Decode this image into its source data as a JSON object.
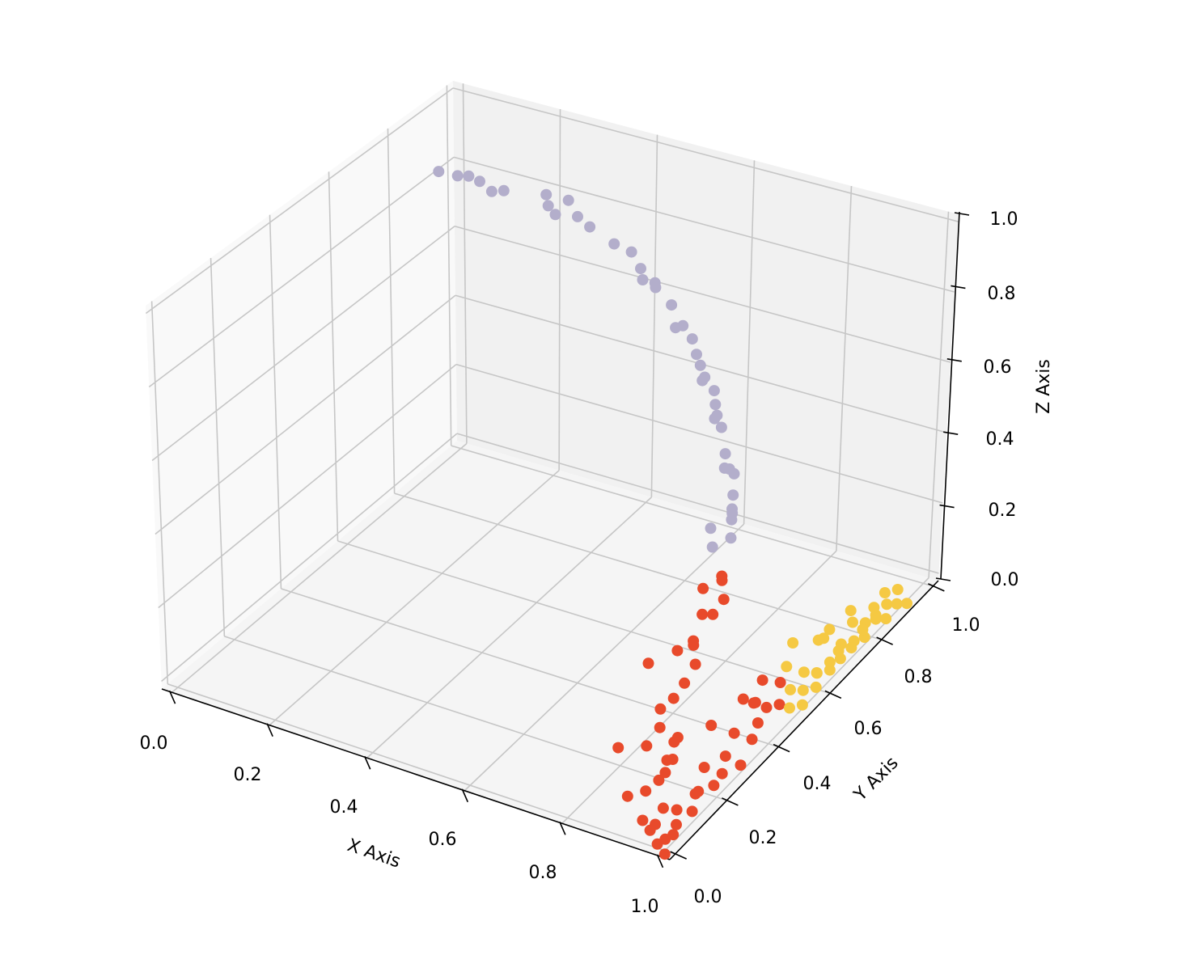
{
  "chart_data": {
    "type": "scatter3d",
    "title": "",
    "xlabel": "X Axis",
    "ylabel": "Y Axis",
    "zlabel": "Z Axis",
    "xlim": [
      0,
      1
    ],
    "ylim": [
      0,
      1
    ],
    "zlim": [
      0,
      1
    ],
    "grid": true,
    "legend": "none",
    "ticks": {
      "x": [
        "0.0",
        "0.2",
        "0.4",
        "0.6",
        "0.8",
        "1.0"
      ],
      "y": [
        "0.0",
        "0.2",
        "0.4",
        "0.6",
        "0.8",
        "1.0"
      ],
      "z": [
        "0.0",
        "0.2",
        "0.4",
        "0.6",
        "0.8",
        "1.0"
      ]
    },
    "series": [
      {
        "color": "#b3aecb",
        "points": [
          [
            0.0,
            0.95,
            0.78
          ],
          [
            0.05,
            0.93,
            0.8
          ],
          [
            0.06,
            0.95,
            0.79
          ],
          [
            0.1,
            0.92,
            0.81
          ],
          [
            0.13,
            0.91,
            0.8
          ],
          [
            0.16,
            0.9,
            0.82
          ],
          [
            0.25,
            0.89,
            0.85
          ],
          [
            0.26,
            0.88,
            0.83
          ],
          [
            0.3,
            0.88,
            0.86
          ],
          [
            0.28,
            0.87,
            0.82
          ],
          [
            0.33,
            0.86,
            0.84
          ],
          [
            0.36,
            0.85,
            0.83
          ],
          [
            0.42,
            0.83,
            0.82
          ],
          [
            0.46,
            0.82,
            0.82
          ],
          [
            0.49,
            0.8,
            0.8
          ],
          [
            0.5,
            0.79,
            0.78
          ],
          [
            0.53,
            0.78,
            0.79
          ],
          [
            0.52,
            0.8,
            0.76
          ],
          [
            0.58,
            0.75,
            0.77
          ],
          [
            0.62,
            0.72,
            0.75
          ],
          [
            0.6,
            0.73,
            0.73
          ],
          [
            0.65,
            0.7,
            0.74
          ],
          [
            0.67,
            0.68,
            0.72
          ],
          [
            0.7,
            0.64,
            0.73
          ],
          [
            0.72,
            0.62,
            0.72
          ],
          [
            0.71,
            0.63,
            0.7
          ],
          [
            0.75,
            0.6,
            0.71
          ],
          [
            0.78,
            0.55,
            0.72
          ],
          [
            0.8,
            0.52,
            0.72
          ],
          [
            0.82,
            0.5,
            0.71
          ],
          [
            0.79,
            0.53,
            0.7
          ],
          [
            0.85,
            0.46,
            0.68
          ],
          [
            0.88,
            0.42,
            0.68
          ],
          [
            0.86,
            0.44,
            0.66
          ],
          [
            0.9,
            0.4,
            0.69
          ],
          [
            0.92,
            0.36,
            0.67
          ],
          [
            0.94,
            0.32,
            0.67
          ],
          [
            0.93,
            0.34,
            0.64
          ],
          [
            0.95,
            0.3,
            0.66
          ],
          [
            0.91,
            0.3,
            0.62
          ],
          [
            0.96,
            0.28,
            0.63
          ],
          [
            0.93,
            0.27,
            0.6
          ]
        ]
      },
      {
        "color": "#e84a2b",
        "points": [
          [
            0.96,
            0.25,
            0.55
          ],
          [
            0.95,
            0.27,
            0.52
          ],
          [
            0.97,
            0.24,
            0.5
          ],
          [
            0.94,
            0.22,
            0.53
          ],
          [
            0.96,
            0.22,
            0.47
          ],
          [
            0.95,
            0.2,
            0.48
          ],
          [
            0.96,
            0.15,
            0.45
          ],
          [
            0.95,
            0.17,
            0.42
          ],
          [
            0.97,
            0.14,
            0.4
          ],
          [
            0.94,
            0.13,
            0.43
          ],
          [
            0.9,
            0.1,
            0.4
          ],
          [
            0.96,
            0.12,
            0.36
          ],
          [
            0.95,
            0.1,
            0.33
          ],
          [
            0.93,
            0.09,
            0.3
          ],
          [
            0.97,
            0.08,
            0.25
          ],
          [
            0.94,
            0.07,
            0.27
          ],
          [
            0.92,
            0.06,
            0.22
          ],
          [
            0.96,
            0.06,
            0.2
          ],
          [
            0.87,
            0.05,
            0.2
          ],
          [
            0.95,
            0.05,
            0.15
          ],
          [
            0.93,
            0.04,
            0.12
          ],
          [
            0.97,
            0.03,
            0.1
          ],
          [
            0.9,
            0.03,
            0.1
          ],
          [
            0.96,
            0.02,
            0.06
          ],
          [
            0.98,
            0.02,
            0.03
          ],
          [
            0.97,
            0.01,
            0.02
          ],
          [
            0.99,
            0.0,
            0.01
          ],
          [
            0.95,
            0.02,
            0.04
          ],
          [
            0.93,
            0.03,
            0.05
          ],
          [
            0.98,
            0.05,
            0.02
          ],
          [
            0.97,
            0.08,
            0.02
          ],
          [
            0.96,
            0.1,
            0.04
          ],
          [
            0.98,
            0.12,
            0.03
          ],
          [
            0.97,
            0.15,
            0.05
          ],
          [
            0.96,
            0.18,
            0.03
          ],
          [
            0.98,
            0.2,
            0.04
          ],
          [
            0.95,
            0.22,
            0.06
          ],
          [
            0.97,
            0.25,
            0.03
          ],
          [
            0.96,
            0.28,
            0.05
          ],
          [
            0.98,
            0.3,
            0.02
          ],
          [
            0.95,
            0.33,
            0.07
          ],
          [
            0.97,
            0.36,
            0.04
          ],
          [
            0.96,
            0.4,
            0.05
          ],
          [
            0.94,
            0.42,
            0.08
          ],
          [
            0.95,
            0.45,
            0.05
          ],
          [
            0.93,
            0.47,
            0.1
          ],
          [
            0.96,
            0.48,
            0.04
          ],
          [
            0.94,
            0.38,
            0.12
          ],
          [
            0.92,
            0.3,
            0.1
          ],
          [
            0.9,
            0.2,
            0.12
          ],
          [
            0.91,
            0.15,
            0.08
          ],
          [
            0.94,
            0.12,
            0.15
          ],
          [
            0.98,
            0.35,
            0.15
          ],
          [
            0.95,
            0.5,
            0.08
          ]
        ]
      },
      {
        "color": "#f5c943",
        "points": [
          [
            0.97,
            0.5,
            0.02
          ],
          [
            0.96,
            0.52,
            0.05
          ],
          [
            0.98,
            0.53,
            0.01
          ],
          [
            0.97,
            0.55,
            0.03
          ],
          [
            0.96,
            0.57,
            0.06
          ],
          [
            0.98,
            0.58,
            0.02
          ],
          [
            0.97,
            0.6,
            0.04
          ],
          [
            0.96,
            0.62,
            0.02
          ],
          [
            0.98,
            0.63,
            0.05
          ],
          [
            0.97,
            0.65,
            0.01
          ],
          [
            0.95,
            0.66,
            0.08
          ],
          [
            0.98,
            0.67,
            0.03
          ],
          [
            0.97,
            0.69,
            0.05
          ],
          [
            0.96,
            0.7,
            0.02
          ],
          [
            0.98,
            0.72,
            0.04
          ],
          [
            0.97,
            0.73,
            0.01
          ],
          [
            0.96,
            0.75,
            0.06
          ],
          [
            0.98,
            0.76,
            0.02
          ],
          [
            0.97,
            0.78,
            0.04
          ],
          [
            0.96,
            0.79,
            0.01
          ],
          [
            0.98,
            0.8,
            0.05
          ],
          [
            0.97,
            0.82,
            0.02
          ],
          [
            0.96,
            0.83,
            0.04
          ],
          [
            0.98,
            0.84,
            0.01
          ],
          [
            0.97,
            0.86,
            0.03
          ],
          [
            0.96,
            0.87,
            0.05
          ],
          [
            0.98,
            0.88,
            0.02
          ],
          [
            0.97,
            0.9,
            0.04
          ],
          [
            0.99,
            0.9,
            0.01
          ],
          [
            0.92,
            0.6,
            0.1
          ],
          [
            0.93,
            0.56,
            0.07
          ],
          [
            0.95,
            0.64,
            0.09
          ],
          [
            0.94,
            0.7,
            0.07
          ],
          [
            0.95,
            0.76,
            0.08
          ]
        ]
      }
    ]
  }
}
